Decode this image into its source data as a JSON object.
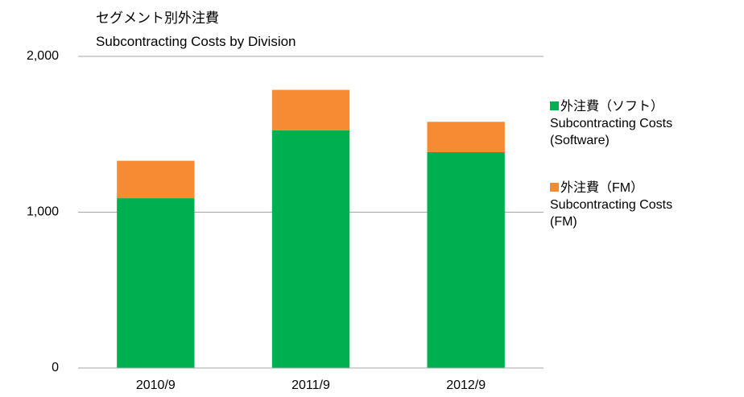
{
  "chart_data": {
    "type": "stacked_bar",
    "title": "セグメント別外注費",
    "subtitle": "Subcontracting Costs by Division",
    "categories": [
      "2010/9",
      "2011/9",
      "2012/9"
    ],
    "series": [
      {
        "name": "外注費（ソフト）\nSubcontracting Costs\n(Software)",
        "color": "#00b050",
        "values": [
          1090,
          1525,
          1385
        ]
      },
      {
        "name": "外注費（FM）\nSubcontracting Costs\n(FM)",
        "color": "#f68b33",
        "values": [
          240,
          260,
          195
        ]
      }
    ],
    "ylim": [
      0,
      2000
    ],
    "yticks": [
      0,
      {
        "value": 1000,
        "label": "1,000"
      },
      {
        "value": 2000,
        "label": "2,000"
      }
    ],
    "grid": true,
    "legend": "right"
  }
}
